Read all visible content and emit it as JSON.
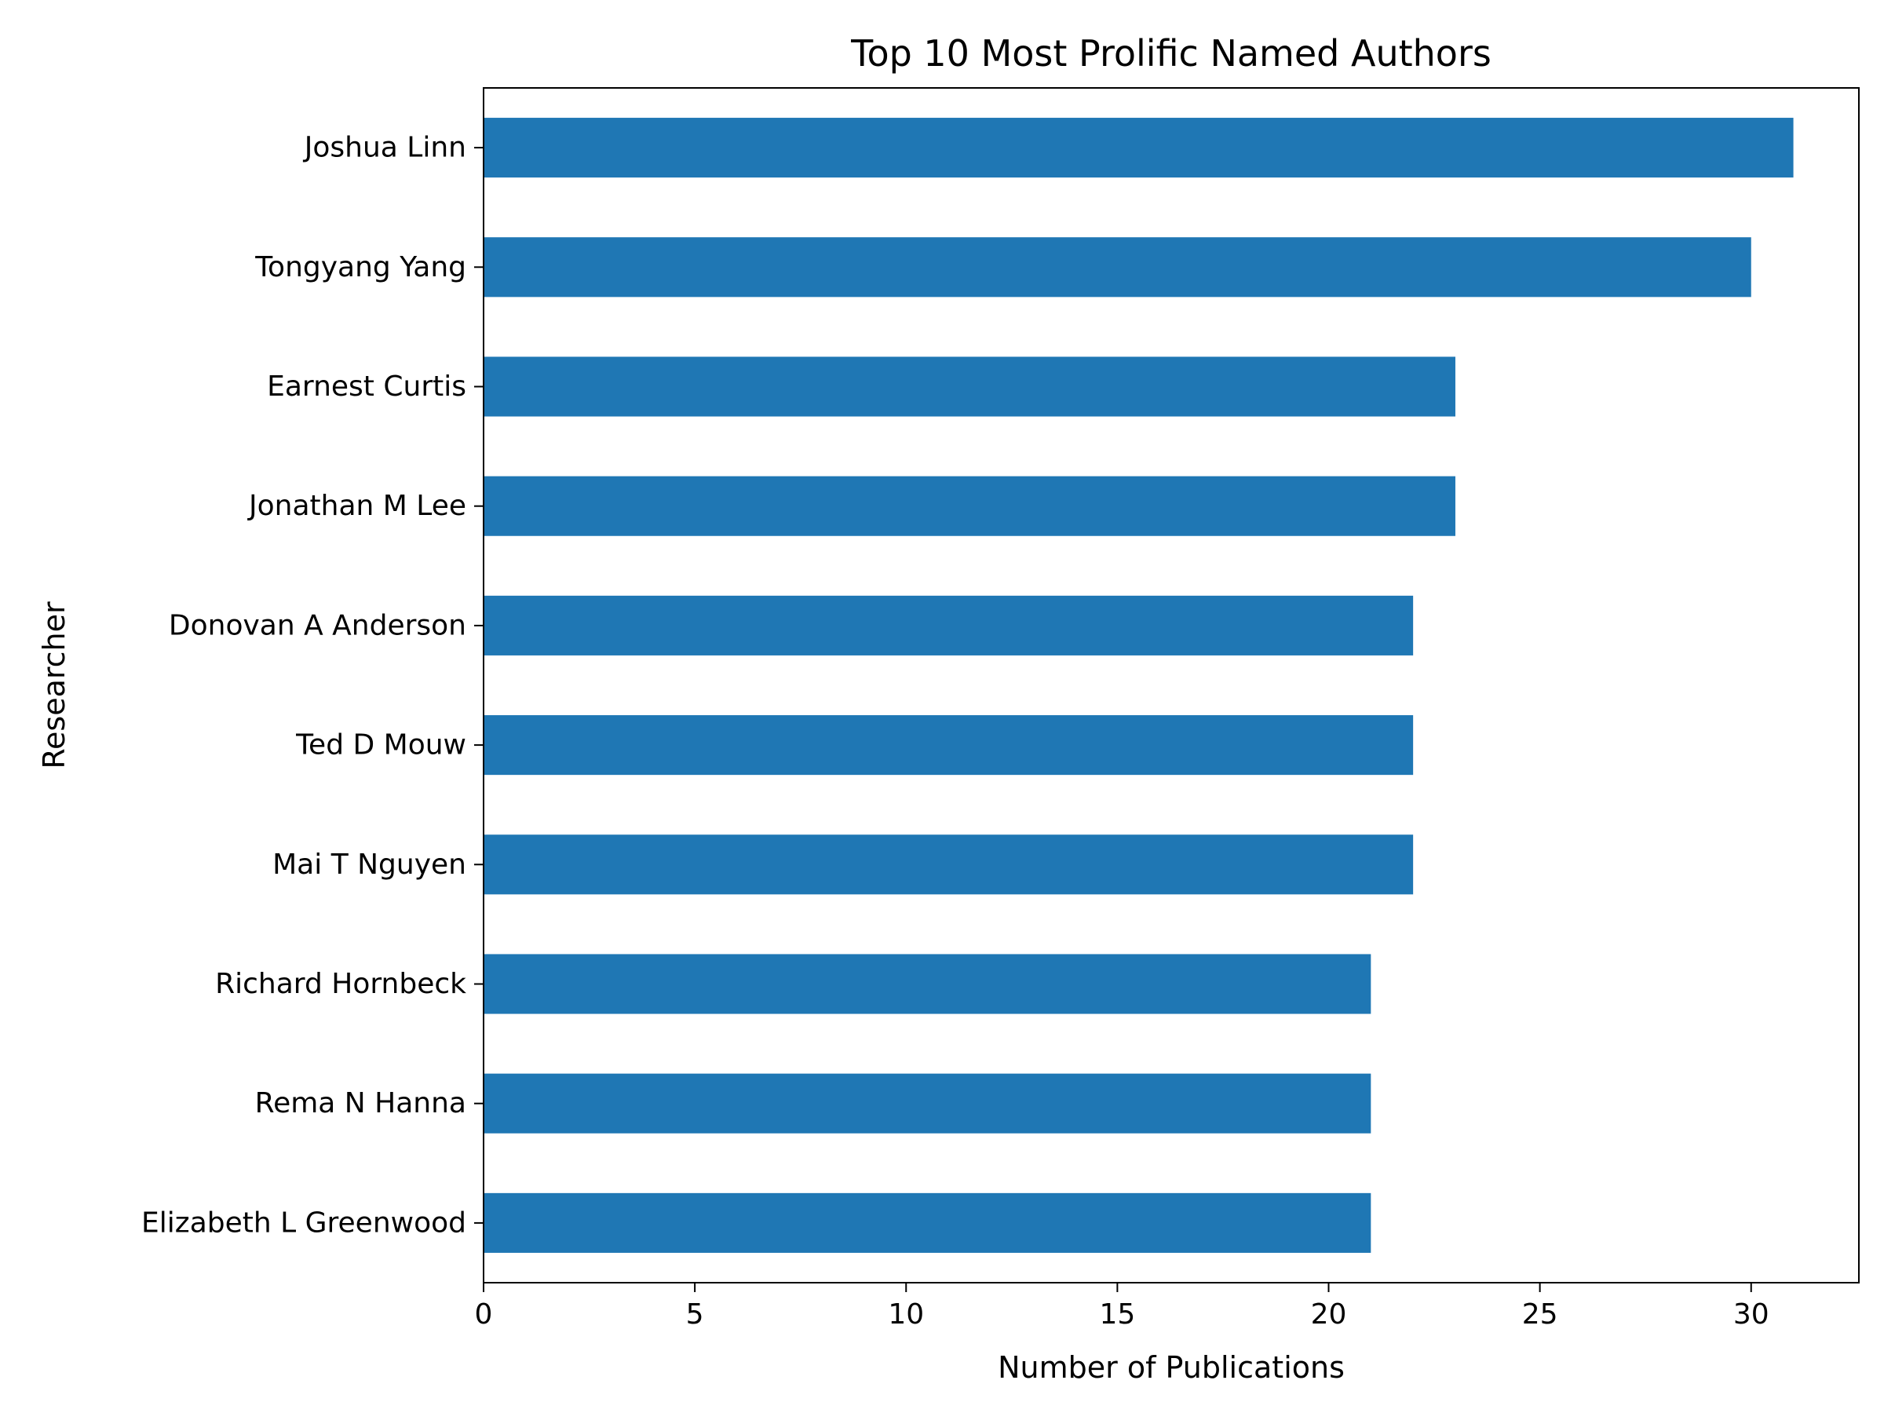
{
  "chart_data": {
    "type": "bar",
    "orientation": "horizontal",
    "title": "Top 10 Most Prolific Named Authors",
    "xlabel": "Number of Publications",
    "ylabel": "Researcher",
    "categories": [
      "Joshua Linn",
      "Tongyang Yang",
      "Earnest Curtis",
      "Jonathan M Lee",
      "Donovan A Anderson",
      "Ted D Mouw",
      "Mai T Nguyen",
      "Richard Hornbeck",
      "Rema N Hanna",
      "Elizabeth L Greenwood"
    ],
    "values": [
      31,
      30,
      23,
      23,
      22,
      22,
      22,
      21,
      21,
      21
    ],
    "xlim": [
      0,
      32.55
    ],
    "xticks": [
      0,
      5,
      10,
      15,
      20,
      25,
      30
    ],
    "grid": false,
    "bar_color": "#1f77b4"
  }
}
